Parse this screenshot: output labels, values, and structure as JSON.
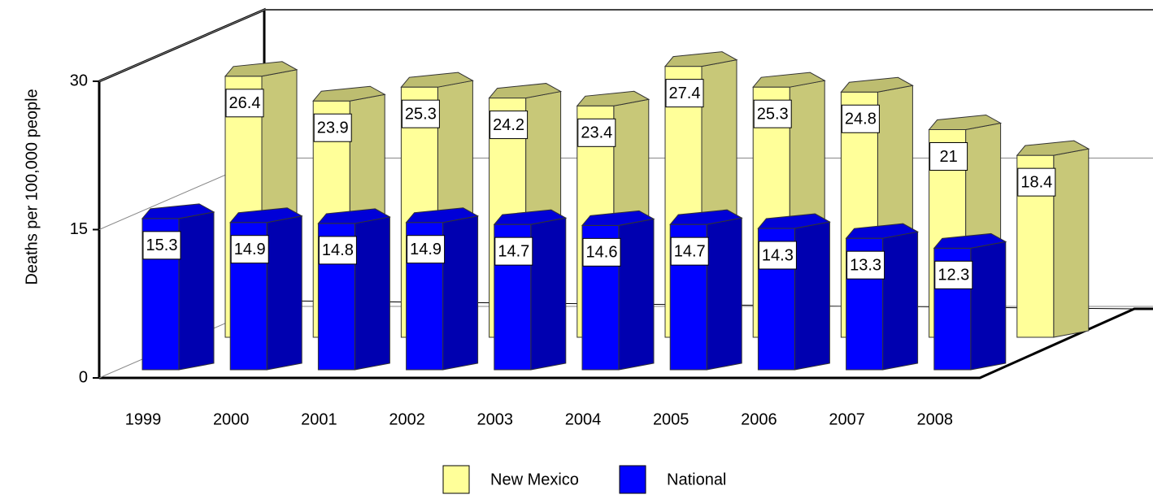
{
  "chart_data": {
    "type": "bar3d",
    "y_label": "Deaths per 100,000 people",
    "categories": [
      "1999",
      "2000",
      "2001",
      "2002",
      "2003",
      "2004",
      "2005",
      "2006",
      "2007",
      "2008"
    ],
    "series": [
      {
        "name": "New Mexico",
        "color": "#ffff99",
        "values": [
          26.4,
          23.9,
          25.3,
          24.2,
          23.4,
          27.4,
          25.3,
          24.8,
          21,
          18.4
        ]
      },
      {
        "name": "National",
        "color": "#0000ff",
        "values": [
          15.3,
          14.9,
          14.8,
          14.9,
          14.7,
          14.6,
          14.7,
          14.3,
          13.3,
          12.3
        ]
      }
    ],
    "ylim": [
      0,
      30
    ],
    "yticks": [
      0,
      15,
      30
    ],
    "grid": true,
    "legend": "bottom"
  }
}
